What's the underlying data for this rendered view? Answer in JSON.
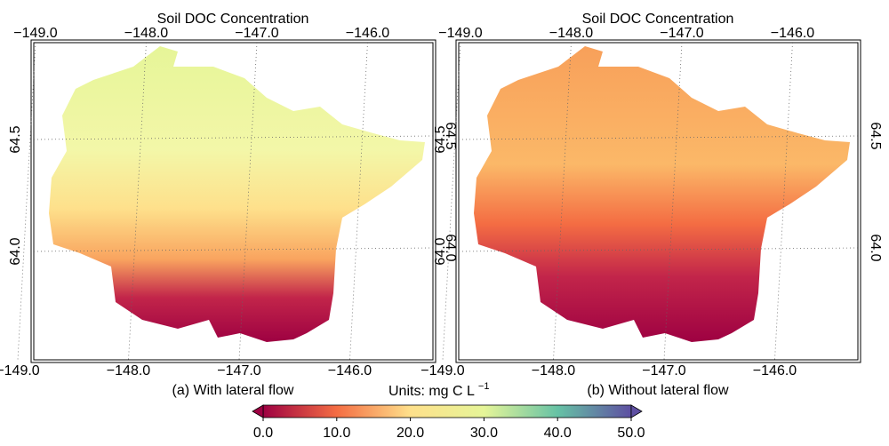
{
  "panels": [
    {
      "title": "Soil DOC Concentration",
      "caption": "(a) With lateral flow"
    },
    {
      "title": "Soil DOC Concentration",
      "caption": "(b) Without lateral flow"
    }
  ],
  "lon_ticks": [
    {
      "value": -149,
      "label": "−149.0"
    },
    {
      "value": -148,
      "label": "−148.0"
    },
    {
      "value": -147,
      "label": "−147.0"
    },
    {
      "value": -146,
      "label": "−146.0"
    }
  ],
  "lat_ticks": [
    {
      "value": 64.5,
      "label": "64.5"
    },
    {
      "value": 64,
      "label": "64.0"
    }
  ],
  "colorbar": {
    "units": "Units: mg C L",
    "units_exponent": "−1",
    "ticks": [
      {
        "value": 0,
        "label": "0.0"
      },
      {
        "value": 10,
        "label": "10.0"
      },
      {
        "value": 20,
        "label": "20.0"
      },
      {
        "value": 30,
        "label": "30.0"
      },
      {
        "value": 40,
        "label": "40.0"
      },
      {
        "value": 50,
        "label": "50.0"
      }
    ],
    "lim": [
      0,
      50
    ]
  }
}
